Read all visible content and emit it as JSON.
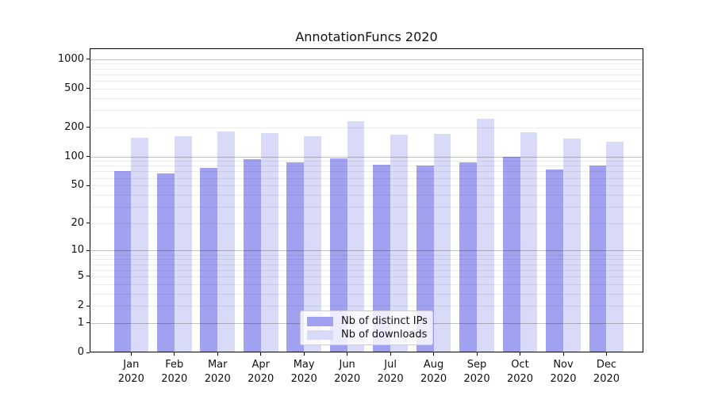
{
  "title": "AnnotationFuncs 2020",
  "colors": {
    "ips_bar": "#a0a1f0",
    "downloads_bar": "#d9daf8",
    "grid_major": "rgba(0,0,0,0.24)",
    "grid_minor": "rgba(0,0,0,0.075)",
    "spine": "#000000",
    "background": "#ffffff",
    "text": "#111111"
  },
  "chart_data": {
    "type": "bar",
    "title": "AnnotationFuncs 2020",
    "categories": [
      "Jan 2020",
      "Feb 2020",
      "Mar 2020",
      "Apr 2020",
      "May 2020",
      "Jun 2020",
      "Jul 2020",
      "Aug 2020",
      "Sep 2020",
      "Oct 2020",
      "Nov 2020",
      "Dec 2020"
    ],
    "series": [
      {
        "name": "Nb of distinct IPs",
        "values": [
          71,
          67,
          76,
          93,
          87,
          95,
          82,
          80,
          87,
          100,
          74,
          81
        ]
      },
      {
        "name": "Nb of downloads",
        "values": [
          155,
          163,
          182,
          174,
          163,
          233,
          168,
          171,
          244,
          177,
          152,
          143
        ]
      }
    ],
    "xlabel": "",
    "ylabel": "",
    "yscale": "log1p",
    "yticks": [
      0,
      1,
      2,
      5,
      10,
      20,
      50,
      100,
      200,
      500,
      1000
    ],
    "ylim": [
      0,
      1290
    ],
    "grid": true,
    "grid_over_bars": true,
    "legend_position": "lower center"
  }
}
